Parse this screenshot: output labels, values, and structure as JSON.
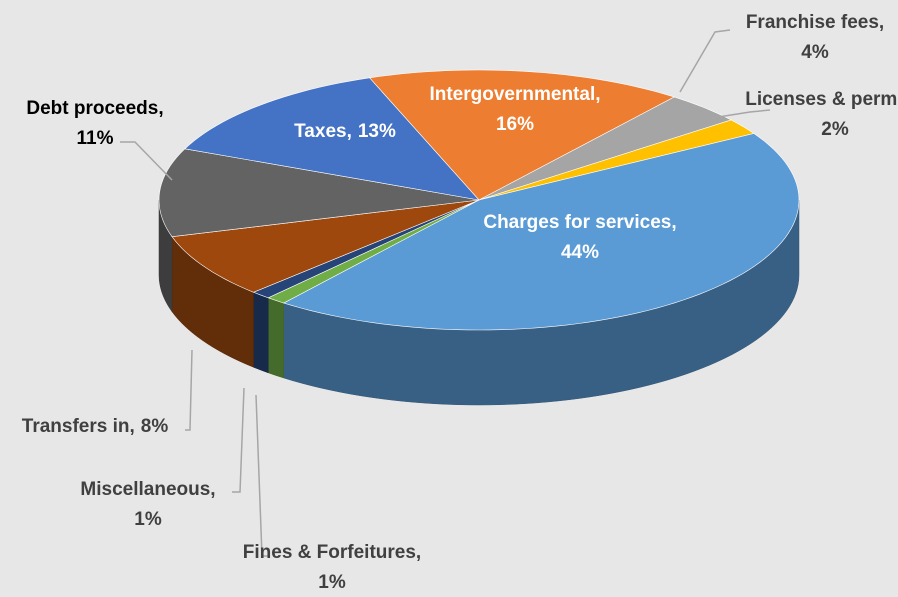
{
  "chart_data": {
    "type": "pie",
    "categories": [
      "Intergovernmental,",
      "Franchise fees,",
      "Licenses & permits,",
      "Charges for services,",
      "Fines & Forfeitures,",
      "Miscellaneous,",
      "Transfers in,",
      "Debt proceeds,",
      "Taxes,"
    ],
    "values": [
      16,
      4,
      2,
      44,
      1,
      1,
      8,
      11,
      13
    ],
    "value_labels": [
      "16%",
      "4%",
      "2%",
      "44%",
      "1%",
      "1%",
      "8%",
      "11%",
      "13%"
    ],
    "colors": [
      "#ed7d31",
      "#a5a5a5",
      "#ffc000",
      "#5b9bd5",
      "#70ad47",
      "#264478",
      "#9e480e",
      "#636363",
      "#4472c4"
    ]
  }
}
